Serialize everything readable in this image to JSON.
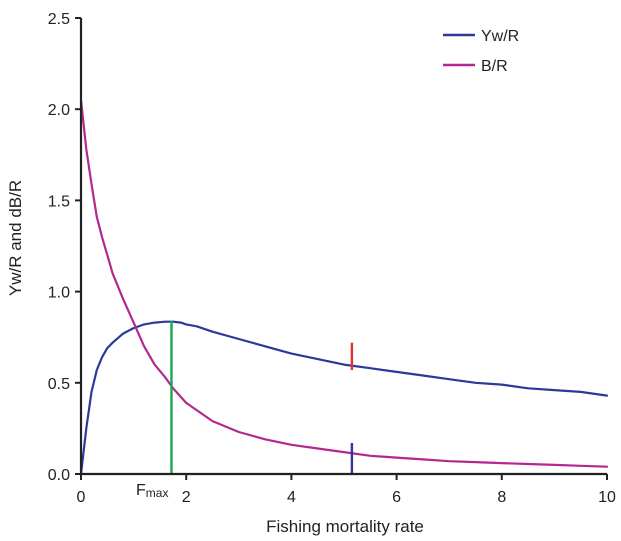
{
  "chart_data": {
    "type": "line",
    "xlabel": "Fishing mortality rate",
    "ylabel": "Yw/R and dB/R",
    "xlim": [
      0,
      10
    ],
    "ylim": [
      0,
      2.5
    ],
    "x_ticks": [
      0,
      2,
      4,
      6,
      8,
      10
    ],
    "x_tick_labels": [
      "0",
      "2",
      "4",
      "6",
      "8",
      "10"
    ],
    "y_ticks": [
      0,
      0.5,
      1.0,
      1.5,
      2.0,
      2.5
    ],
    "y_tick_labels": [
      "0.0",
      "0.5",
      "1.0",
      "1.5",
      "2.0",
      "2.5"
    ],
    "grid": false,
    "legend_position": "top-right",
    "series": [
      {
        "name": "Yw/R",
        "color": "#2b3a98",
        "x": [
          0,
          0.1,
          0.2,
          0.3,
          0.4,
          0.5,
          0.6,
          0.8,
          1.0,
          1.2,
          1.4,
          1.6,
          1.75,
          1.9,
          2.0,
          2.2,
          2.5,
          3.0,
          3.5,
          4.0,
          4.5,
          5.0,
          5.5,
          6.0,
          6.5,
          7.0,
          7.5,
          8.0,
          8.5,
          9.0,
          9.5,
          10.0
        ],
        "y": [
          0,
          0.25,
          0.45,
          0.57,
          0.64,
          0.69,
          0.72,
          0.77,
          0.8,
          0.82,
          0.83,
          0.835,
          0.835,
          0.83,
          0.82,
          0.81,
          0.78,
          0.74,
          0.7,
          0.66,
          0.63,
          0.6,
          0.58,
          0.56,
          0.54,
          0.52,
          0.5,
          0.49,
          0.47,
          0.46,
          0.45,
          0.43
        ]
      },
      {
        "name": "B/R",
        "color": "#b2288f",
        "x": [
          0,
          0.1,
          0.2,
          0.3,
          0.4,
          0.5,
          0.6,
          0.8,
          1.0,
          1.2,
          1.4,
          1.6,
          1.75,
          2.0,
          2.5,
          3.0,
          3.5,
          4.0,
          4.5,
          5.0,
          5.5,
          6.0,
          6.5,
          7.0,
          7.5,
          8.0,
          8.5,
          9.0,
          9.5,
          10.0
        ],
        "y": [
          2.05,
          1.78,
          1.59,
          1.41,
          1.3,
          1.2,
          1.1,
          0.96,
          0.83,
          0.7,
          0.6,
          0.53,
          0.47,
          0.39,
          0.29,
          0.23,
          0.19,
          0.16,
          0.14,
          0.12,
          0.1,
          0.09,
          0.08,
          0.07,
          0.065,
          0.06,
          0.055,
          0.05,
          0.045,
          0.04
        ]
      }
    ],
    "markers": [
      {
        "name": "Fmax",
        "x": 1.72,
        "y_from": 0,
        "y_to": 0.84,
        "color": "#1aa552"
      },
      {
        "name": "marker-yw",
        "x": 5.15,
        "y_from": 0.57,
        "y_to": 0.72,
        "color": "#e03232"
      },
      {
        "name": "marker-br",
        "x": 5.15,
        "y_from": 0,
        "y_to": 0.17,
        "color": "#2b3a98"
      }
    ],
    "annotations": {
      "fmax_main": "F",
      "fmax_sub": "max"
    }
  }
}
